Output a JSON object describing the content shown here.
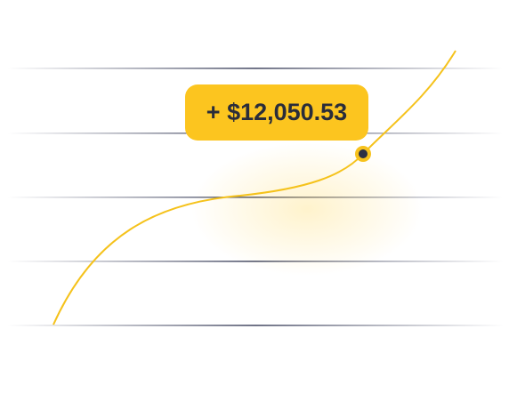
{
  "tooltip": {
    "label": "+ $12,050.53"
  }
}
